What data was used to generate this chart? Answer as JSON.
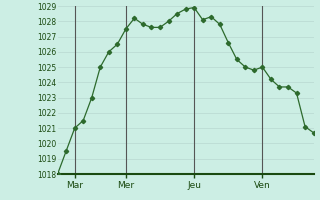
{
  "x_values": [
    0,
    1,
    2,
    3,
    4,
    5,
    6,
    7,
    8,
    9,
    10,
    11,
    12,
    13,
    14,
    15,
    16,
    17,
    18,
    19,
    20,
    21,
    22,
    23,
    24,
    25,
    26,
    27,
    28,
    29,
    30
  ],
  "y_values": [
    1018,
    1019.5,
    1021,
    1021.5,
    1023,
    1025,
    1026,
    1026.5,
    1027.5,
    1028.2,
    1027.8,
    1027.6,
    1027.6,
    1028.0,
    1028.5,
    1028.8,
    1028.9,
    1028.1,
    1028.3,
    1027.8,
    1026.6,
    1025.5,
    1025.0,
    1024.8,
    1025.0,
    1024.2,
    1023.7,
    1023.7,
    1023.3,
    1021.1,
    1020.7
  ],
  "xtick_positions": [
    2,
    8,
    16,
    24
  ],
  "xtick_labels": [
    "Mar",
    "Mer",
    "Jeu",
    "Ven"
  ],
  "vline_positions": [
    2,
    8,
    16,
    24
  ],
  "ylim": [
    1018,
    1029
  ],
  "ytick_start": 1018,
  "ytick_end": 1029,
  "line_color": "#2d6a2d",
  "marker_color": "#2d6a2d",
  "bg_color": "#cceee4",
  "grid_color_h": "#b8d8d0",
  "grid_color_v": "#c8b8b8",
  "axis_color": "#1a4a10",
  "vline_color": "#808080",
  "xlim_max": 30
}
